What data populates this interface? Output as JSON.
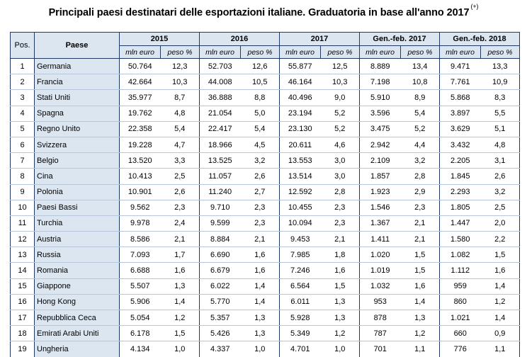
{
  "title": "Principali paesi destinatari delle esportazioni italiane. Graduatoria in base all'anno 2017",
  "title_note": "(+)",
  "headers": {
    "pos": "Pos.",
    "paese": "Paese",
    "periods": [
      "2015",
      "2016",
      "2017",
      "Gen.-feb. 2017",
      "Gen.-feb. 2018"
    ],
    "mln": "mln euro",
    "peso": "peso %"
  },
  "rows": [
    {
      "pos": "1",
      "paese": "Germania",
      "v": [
        "50.764",
        "12,3",
        "52.703",
        "12,6",
        "55.877",
        "12,5",
        "8.889",
        "13,4",
        "9.471",
        "13,3"
      ]
    },
    {
      "pos": "2",
      "paese": "Francia",
      "v": [
        "42.664",
        "10,3",
        "44.008",
        "10,5",
        "46.164",
        "10,3",
        "7.198",
        "10,8",
        "7.761",
        "10,9"
      ]
    },
    {
      "pos": "3",
      "paese": "Stati Uniti",
      "v": [
        "35.977",
        "8,7",
        "36.888",
        "8,8",
        "40.496",
        "9,0",
        "5.910",
        "8,9",
        "5.868",
        "8,3"
      ]
    },
    {
      "pos": "4",
      "paese": "Spagna",
      "v": [
        "19.762",
        "4,8",
        "21.054",
        "5,0",
        "23.194",
        "5,2",
        "3.596",
        "5,4",
        "3.897",
        "5,5"
      ]
    },
    {
      "pos": "5",
      "paese": "Regno Unito",
      "v": [
        "22.358",
        "5,4",
        "22.417",
        "5,4",
        "23.130",
        "5,2",
        "3.475",
        "5,2",
        "3.629",
        "5,1"
      ]
    },
    {
      "pos": "6",
      "paese": "Svizzera",
      "v": [
        "19.228",
        "4,7",
        "18.966",
        "4,5",
        "20.611",
        "4,6",
        "2.942",
        "4,4",
        "3.432",
        "4,8"
      ]
    },
    {
      "pos": "7",
      "paese": "Belgio",
      "v": [
        "13.520",
        "3,3",
        "13.525",
        "3,2",
        "13.553",
        "3,0",
        "2.109",
        "3,2",
        "2.205",
        "3,1"
      ]
    },
    {
      "pos": "8",
      "paese": "Cina",
      "v": [
        "10.413",
        "2,5",
        "11.057",
        "2,6",
        "13.514",
        "3,0",
        "1.857",
        "2,8",
        "1.845",
        "2,6"
      ]
    },
    {
      "pos": "9",
      "paese": "Polonia",
      "v": [
        "10.901",
        "2,6",
        "11.240",
        "2,7",
        "12.592",
        "2,8",
        "1.923",
        "2,9",
        "2.293",
        "3,2"
      ]
    },
    {
      "pos": "10",
      "paese": "Paesi Bassi",
      "v": [
        "9.562",
        "2,3",
        "9.710",
        "2,3",
        "10.455",
        "2,3",
        "1.546",
        "2,3",
        "1.805",
        "2,5"
      ]
    },
    {
      "pos": "11",
      "paese": "Turchia",
      "v": [
        "9.978",
        "2,4",
        "9.599",
        "2,3",
        "10.094",
        "2,3",
        "1.367",
        "2,1",
        "1.447",
        "2,0"
      ]
    },
    {
      "pos": "12",
      "paese": "Austria",
      "v": [
        "8.586",
        "2,1",
        "8.884",
        "2,1",
        "9.453",
        "2,1",
        "1.411",
        "2,1",
        "1.580",
        "2,2"
      ]
    },
    {
      "pos": "13",
      "paese": "Russia",
      "v": [
        "7.093",
        "1,7",
        "6.690",
        "1,6",
        "7.985",
        "1,8",
        "1.020",
        "1,5",
        "1.082",
        "1,5"
      ]
    },
    {
      "pos": "14",
      "paese": "Romania",
      "v": [
        "6.688",
        "1,6",
        "6.679",
        "1,6",
        "7.246",
        "1,6",
        "1.019",
        "1,5",
        "1.112",
        "1,6"
      ]
    },
    {
      "pos": "15",
      "paese": "Giappone",
      "v": [
        "5.507",
        "1,3",
        "6.022",
        "1,4",
        "6.564",
        "1,5",
        "1.032",
        "1,6",
        "959",
        "1,4"
      ]
    },
    {
      "pos": "16",
      "paese": "Hong Kong",
      "v": [
        "5.906",
        "1,4",
        "5.770",
        "1,4",
        "6.011",
        "1,3",
        "953",
        "1,4",
        "860",
        "1,2"
      ]
    },
    {
      "pos": "17",
      "paese": "Repubblica Ceca",
      "v": [
        "5.054",
        "1,2",
        "5.357",
        "1,3",
        "5.928",
        "1,3",
        "878",
        "1,3",
        "1.021",
        "1,4"
      ]
    },
    {
      "pos": "18",
      "paese": "Emirati Arabi Uniti",
      "v": [
        "6.178",
        "1,5",
        "5.426",
        "1,3",
        "5.349",
        "1,2",
        "787",
        "1,2",
        "660",
        "0,9"
      ]
    },
    {
      "pos": "19",
      "paese": "Ungheria",
      "v": [
        "4.134",
        "1,0",
        "4.337",
        "1,0",
        "4.701",
        "1,0",
        "701",
        "1,1",
        "776",
        "1,1"
      ]
    }
  ]
}
